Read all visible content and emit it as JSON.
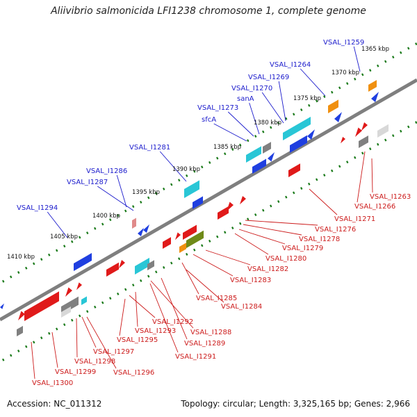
{
  "title": "Aliivibrio salmonicida LFI1238 chromosome 1, complete genome",
  "footer": {
    "accession": "Accession: NC_011312",
    "topology": "Topology: circular; Length: 3,325,165 bp; Genes: 2,966"
  },
  "colors": {
    "backbone": "#7f7f7f",
    "tick": "#1a7a1a",
    "forward_label": "#1a1acc",
    "reverse_label": "#cc1a1a",
    "blue_gene": "#1f3fe0",
    "red_gene": "#e01a1a",
    "cyan_gene": "#29c6d6",
    "orange_gene": "#f09010",
    "olive_gene": "#6f8a18",
    "gray_gene": "#808080",
    "pink_gene": "#e08a8a"
  },
  "position_labels": [
    "1365 kbp",
    "1370 kbp",
    "1375 kbp",
    "1380 kbp",
    "1385 kbp",
    "1390 kbp",
    "1395 kbp",
    "1400 kbp",
    "1405 kbp",
    "1410 kbp"
  ],
  "forward_labels": [
    "VSAL_I1259",
    "VSAL_I1264",
    "VSAL_I1269",
    "VSAL_I1270",
    "sanA",
    "VSAL_I1273",
    "sfcA",
    "VSAL_I1281",
    "VSAL_I1286",
    "VSAL_I1287",
    "VSAL_I1294"
  ],
  "reverse_labels": [
    "VSAL_I1263",
    "VSAL_I1266",
    "VSAL_I1271",
    "VSAL_I1276",
    "VSAL_I1278",
    "VSAL_I1279",
    "VSAL_I1280",
    "VSAL_I1282",
    "VSAL_I1283",
    "VSAL_I1285",
    "VSAL_I1284",
    "VSAL_I1292",
    "VSAL_I1293",
    "VSAL_I1288",
    "VSAL_I1295",
    "VSAL_I1289",
    "VSAL_I1291",
    "VSAL_I1297",
    "VSAL_I1298",
    "VSAL_I1296",
    "VSAL_I1299",
    "VSAL_I1300"
  ]
}
